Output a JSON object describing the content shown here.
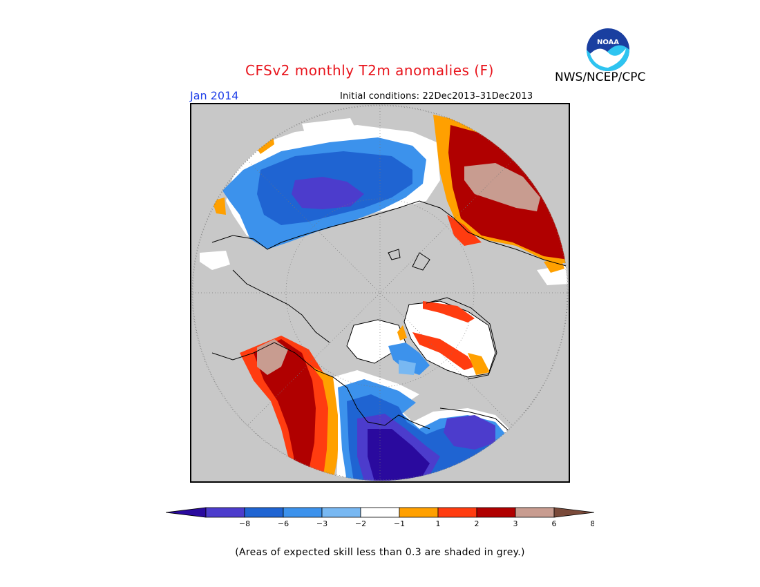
{
  "title": "CFSv2 monthly T2m anomalies (F)",
  "month": "Jan 2014",
  "initial_conditions": "Initial conditions: 22Dec2013–31Dec2013",
  "agency": "NWS/NCEP/CPC",
  "logo_text": "NOAA",
  "note": "(Areas of expected skill less than 0.3 are shaded in grey.)",
  "colors": {
    "land_grey": "#c8c8c8",
    "title_red": "#e8141c",
    "month_blue": "#2040e8"
  },
  "legend": {
    "colors": [
      "#2a0a9e",
      "#4c3ccc",
      "#1f64d2",
      "#3c92ec",
      "#78b8f2",
      "#ffffff",
      "#ffa000",
      "#ff3c10",
      "#b00000",
      "#c89c90",
      "#7a4a3a"
    ],
    "ticks": [
      "−8",
      "−6",
      "−3",
      "−2",
      "−1",
      "1",
      "2",
      "3",
      "6",
      "8"
    ]
  }
}
